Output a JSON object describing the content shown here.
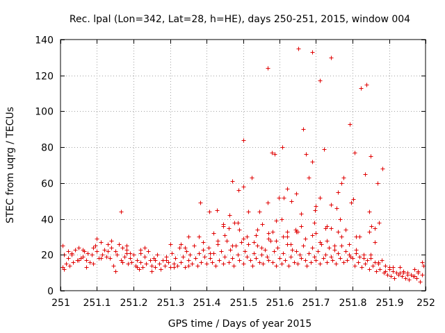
{
  "chart_data": {
    "type": "scatter",
    "title": "Rec. lpal (Lon=342, Lat=28, h=HE), days 250-251, 2015, window 004",
    "xlabel": "GPS time / Days of year 2015",
    "ylabel": "STEC from uqrg / TECUs",
    "xlim": [
      251,
      252
    ],
    "ylim": [
      0,
      140
    ],
    "xticks": [
      251,
      251.1,
      251.2,
      251.3,
      251.4,
      251.5,
      251.6,
      251.7,
      251.8,
      251.9,
      252
    ],
    "xtick_labels": [
      "251",
      "251.1",
      "251.2",
      "251.3",
      "251.4",
      "251.5",
      "251.6",
      "251.7",
      "251.8",
      "251.9",
      "252"
    ],
    "yticks": [
      0,
      20,
      40,
      60,
      80,
      100,
      120,
      140
    ],
    "ytick_labels": [
      "0",
      "20",
      "40",
      "60",
      "80",
      "100",
      "120",
      "140"
    ],
    "grid": true,
    "marker": "+",
    "color": "#e00000",
    "x": [
      251.005,
      251.005,
      251.01,
      251.015,
      251.02,
      251.025,
      251.03,
      251.035,
      251.04,
      251.045,
      251.05,
      251.055,
      251.06,
      251.065,
      251.07,
      251.075,
      251.08,
      251.085,
      251.09,
      251.095,
      251.1,
      251.105,
      251.11,
      251.115,
      251.12,
      251.125,
      251.13,
      251.135,
      251.14,
      251.145,
      251.15,
      251.155,
      251.16,
      251.165,
      251.17,
      251.175,
      251.18,
      251.185,
      251.19,
      251.195,
      251.2,
      251.205,
      251.21,
      251.215,
      251.22,
      251.225,
      251.23,
      251.235,
      251.24,
      251.245,
      251.25,
      251.255,
      251.26,
      251.265,
      251.27,
      251.275,
      251.28,
      251.285,
      251.29,
      251.295,
      251.3,
      251.305,
      251.31,
      251.315,
      251.32,
      251.325,
      251.33,
      251.335,
      251.34,
      251.345,
      251.35,
      251.355,
      251.36,
      251.365,
      251.37,
      251.375,
      251.38,
      251.385,
      251.39,
      251.395,
      251.4,
      251.405,
      251.41,
      251.415,
      251.42,
      251.425,
      251.43,
      251.435,
      251.44,
      251.445,
      251.45,
      251.455,
      251.46,
      251.465,
      251.47,
      251.475,
      251.48,
      251.485,
      251.49,
      251.495,
      251.5,
      251.505,
      251.51,
      251.515,
      251.52,
      251.525,
      251.53,
      251.535,
      251.54,
      251.545,
      251.55,
      251.555,
      251.56,
      251.565,
      251.57,
      251.575,
      251.58,
      251.585,
      251.59,
      251.595,
      251.6,
      251.605,
      251.61,
      251.615,
      251.62,
      251.625,
      251.63,
      251.635,
      251.64,
      251.645,
      251.65,
      251.655,
      251.66,
      251.665,
      251.67,
      251.675,
      251.68,
      251.685,
      251.69,
      251.695,
      251.7,
      251.705,
      251.71,
      251.715,
      251.72,
      251.725,
      251.73,
      251.735,
      251.74,
      251.745,
      251.75,
      251.755,
      251.76,
      251.765,
      251.77,
      251.775,
      251.78,
      251.785,
      251.79,
      251.795,
      251.8,
      251.805,
      251.81,
      251.815,
      251.82,
      251.825,
      251.83,
      251.835,
      251.84,
      251.845,
      251.85,
      251.855,
      251.86,
      251.865,
      251.87,
      251.875,
      251.88,
      251.885,
      251.89,
      251.895,
      251.9,
      251.905,
      251.91,
      251.915,
      251.92,
      251.925,
      251.93,
      251.935,
      251.94,
      251.945,
      251.95,
      251.955,
      251.96,
      251.965,
      251.97,
      251.975,
      251.98,
      251.985,
      251.99,
      251.995,
      251.01,
      251.03,
      251.05,
      251.07,
      251.09,
      251.11,
      251.13,
      251.15,
      251.17,
      251.19,
      251.21,
      251.23,
      251.25,
      251.27,
      251.29,
      251.31,
      251.33,
      251.35,
      251.37,
      251.39,
      251.41,
      251.43,
      251.45,
      251.47,
      251.49,
      251.51,
      251.53,
      251.55,
      251.57,
      251.59,
      251.61,
      251.63,
      251.65,
      251.67,
      251.69,
      251.71,
      251.73,
      251.75,
      251.77,
      251.79,
      251.81,
      251.83,
      251.85,
      251.87,
      251.89,
      251.91,
      251.93,
      251.95,
      251.97,
      251.99,
      251.02,
      251.06,
      251.1,
      251.14,
      251.18,
      251.22,
      251.26,
      251.3,
      251.34,
      251.38,
      251.42,
      251.46,
      251.5,
      251.54,
      251.58,
      251.62,
      251.66,
      251.7,
      251.74,
      251.78,
      251.82,
      251.86,
      251.9,
      251.94,
      251.98,
      251.166,
      251.382,
      251.408,
      251.428,
      251.445,
      251.462,
      251.477,
      251.487,
      251.5,
      251.515,
      251.523,
      251.545,
      251.553,
      251.567,
      251.579,
      251.598,
      251.608,
      251.62,
      251.633,
      251.652,
      251.665,
      251.68,
      251.69,
      251.698,
      251.71,
      251.722,
      251.74,
      251.757,
      251.775,
      251.792,
      251.805,
      251.822,
      251.838,
      251.85,
      251.868,
      251.882,
      251.5,
      251.586,
      251.612,
      251.645,
      251.672,
      251.7,
      251.74,
      251.77,
      251.802,
      251.852,
      251.568,
      251.66,
      251.711,
      251.76,
      251.796,
      251.845,
      251.54,
      251.62,
      251.69,
      251.835,
      251.47,
      251.57,
      251.59,
      251.644,
      251.73,
      251.76,
      251.81,
      251.86,
      251.18,
      251.22,
      251.35,
      251.445,
      251.485,
      251.535,
      251.605,
      251.645,
      251.695,
      251.725,
      251.765,
      251.845,
      251.872
    ],
    "y": [
      25,
      13,
      20,
      15,
      22,
      14,
      21,
      16,
      23,
      17,
      24,
      18,
      19,
      22,
      17,
      21,
      16,
      20,
      15,
      25,
      22,
      18,
      27,
      20,
      23,
      19,
      26,
      18,
      24,
      14,
      22,
      20,
      26,
      17,
      24,
      19,
      21,
      15,
      18,
      16,
      20,
      14,
      17,
      12,
      16,
      13,
      19,
      15,
      22,
      17,
      14,
      18,
      13,
      20,
      15,
      12,
      17,
      14,
      19,
      16,
      13,
      21,
      15,
      18,
      14,
      24,
      16,
      19,
      13,
      22,
      17,
      20,
      15,
      25,
      18,
      14,
      21,
      16,
      23,
      19,
      15,
      24,
      18,
      16,
      21,
      14,
      26,
      17,
      22,
      15,
      19,
      28,
      16,
      23,
      18,
      14,
      25,
      20,
      17,
      27,
      15,
      22,
      19,
      26,
      17,
      14,
      21,
      18,
      25,
      16,
      20,
      15,
      23,
      19,
      17,
      28,
      16,
      22,
      14,
      24,
      18,
      15,
      21,
      17,
      26,
      14,
      19,
      23,
      16,
      22,
      15,
      20,
      18,
      25,
      17,
      14,
      21,
      16,
      24,
      19,
      17,
      22,
      15,
      26,
      18,
      20,
      16,
      24,
      19,
      17,
      23,
      15,
      21,
      18,
      25,
      16,
      22,
      17,
      20,
      19,
      18,
      14,
      21,
      16,
      19,
      13,
      20,
      15,
      17,
      12,
      18,
      14,
      16,
      11,
      15,
      12,
      17,
      10,
      14,
      9,
      12,
      8,
      11,
      7,
      10,
      9,
      13,
      8,
      11,
      7,
      10,
      6,
      9,
      8,
      12,
      7,
      10,
      5,
      9,
      14,
      12,
      20,
      17,
      13,
      24,
      18,
      22,
      11,
      16,
      21,
      13,
      24,
      11,
      15,
      17,
      13,
      26,
      14,
      18,
      27,
      21,
      28,
      31,
      25,
      34,
      30,
      27,
      24,
      32,
      28,
      30,
      26,
      33,
      29,
      31,
      27,
      28,
      25,
      30,
      26,
      23,
      18,
      20,
      16,
      11,
      13,
      10,
      9,
      8,
      16,
      18,
      23,
      29,
      28,
      25,
      23,
      17,
      26,
      24,
      30,
      32,
      35,
      29,
      34,
      33,
      30,
      36,
      32,
      35,
      34,
      30,
      27,
      13,
      10,
      11,
      44,
      49,
      44,
      45,
      36,
      42,
      38,
      56,
      84,
      44,
      63,
      44,
      37,
      124,
      77,
      52,
      80,
      57,
      50,
      135,
      90,
      63,
      133,
      45,
      117,
      79,
      130,
      46,
      63,
      93,
      77,
      113,
      115,
      75,
      60,
      68,
      58,
      76,
      52,
      54,
      76,
      47,
      48,
      60,
      51,
      36,
      49,
      43,
      52,
      55,
      49,
      44,
      34,
      33,
      72,
      65,
      61,
      29,
      39,
      34,
      36,
      33,
      30,
      35,
      23,
      21,
      30,
      37,
      38,
      31,
      40,
      33,
      38,
      35,
      40,
      33,
      38
    ]
  }
}
